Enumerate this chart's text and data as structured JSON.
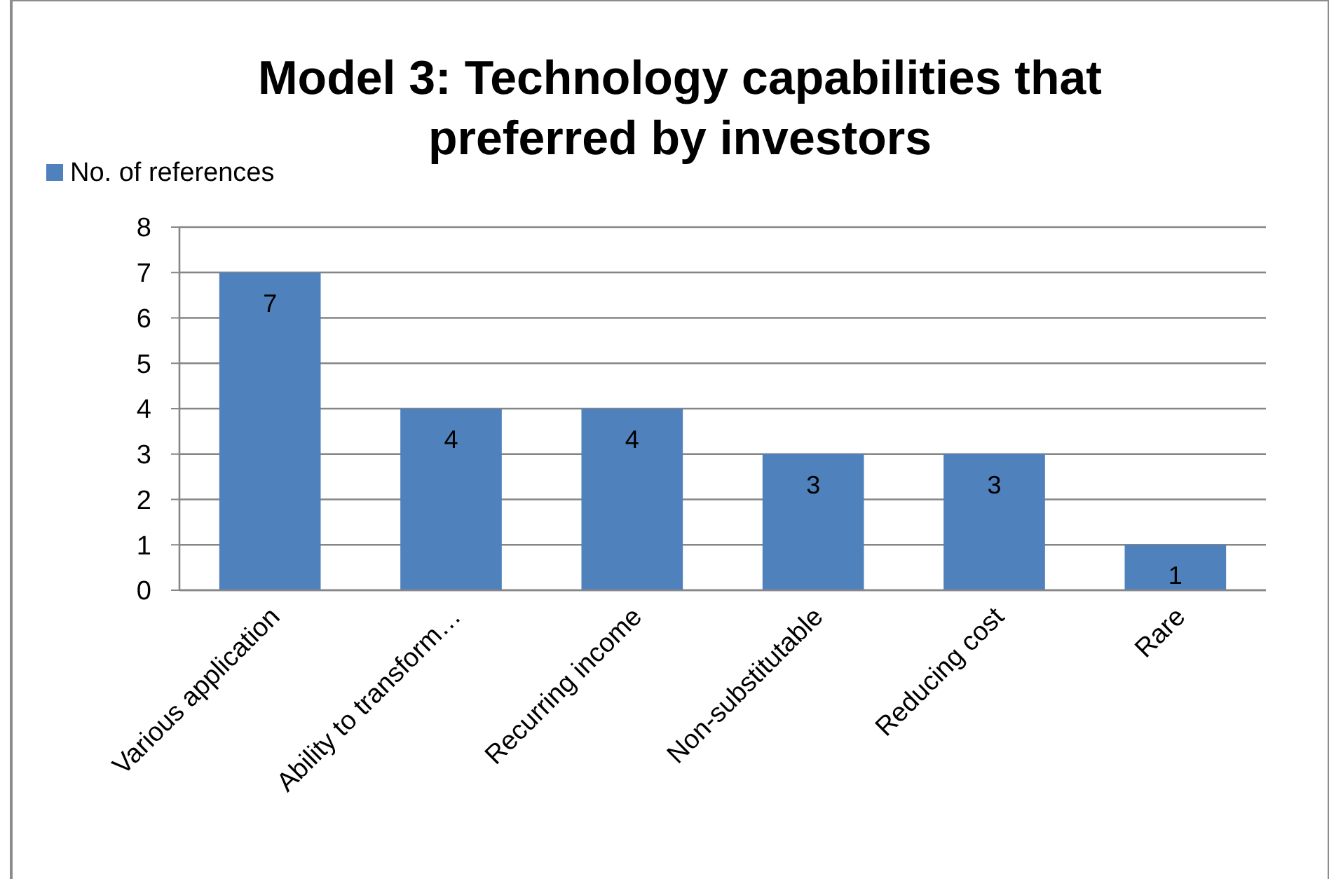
{
  "chart_data": {
    "type": "bar",
    "title": "Model 3: Technology capabilities that preferred by investors",
    "categories": [
      "Various application",
      "Ability to transform…",
      "Recurring income",
      "Non-substitutable",
      "Reducing cost",
      "Rare"
    ],
    "series": [
      {
        "name": "No. of references",
        "color": "#4f81bd",
        "values": [
          7,
          4,
          4,
          3,
          3,
          1
        ]
      }
    ],
    "ylim": [
      0,
      8
    ],
    "yticks": [
      0,
      1,
      2,
      3,
      4,
      5,
      6,
      7,
      8
    ],
    "grid": "y",
    "legend": "top left",
    "data_labels": true
  }
}
